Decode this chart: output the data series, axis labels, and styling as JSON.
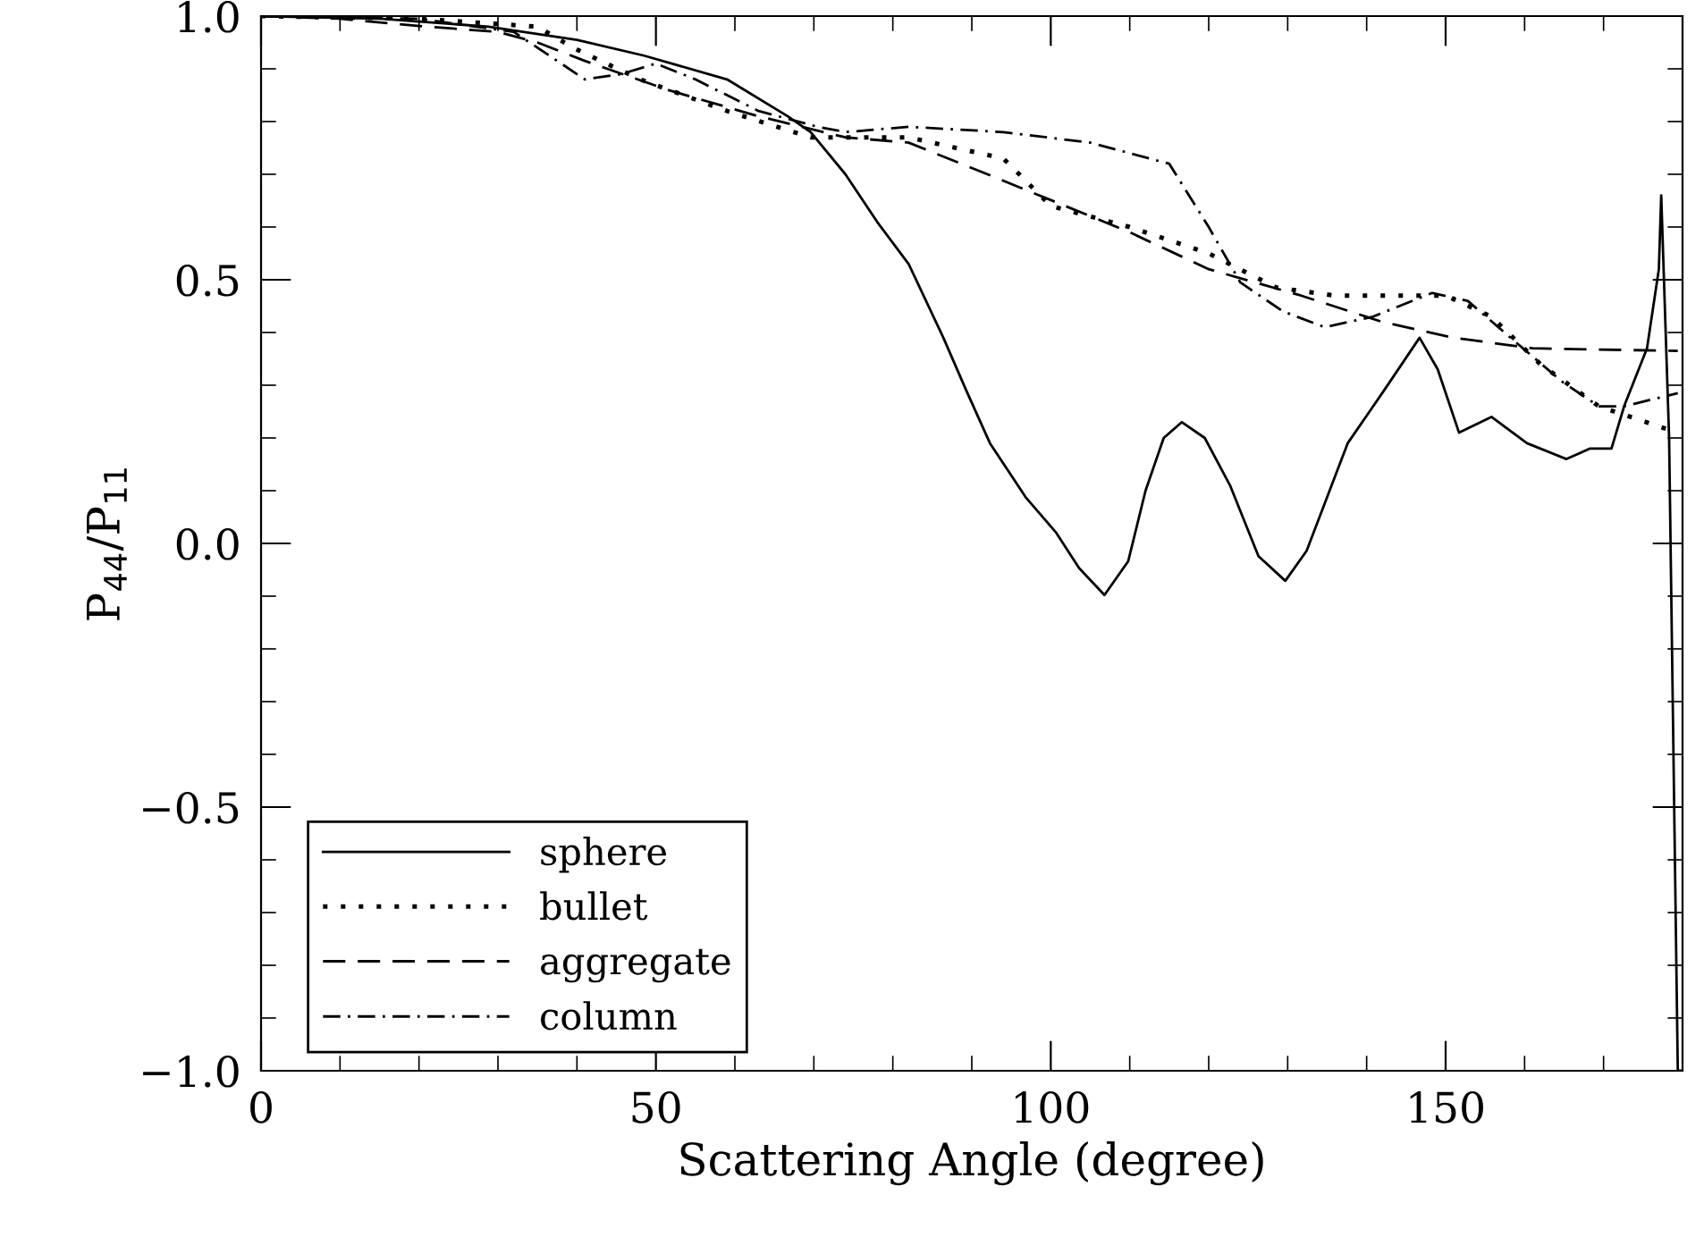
{
  "chart_data": {
    "type": "line",
    "xlabel": "Scattering Angle (degree)",
    "ylabel": "P$_{44}$/P$_{11}$",
    "xlim": [
      0,
      180
    ],
    "ylim": [
      -1.0,
      1.0
    ],
    "xticks": [
      0,
      50,
      100,
      150
    ],
    "yticks": [
      {
        "value": -1.0,
        "label": "−1.0"
      },
      {
        "value": -0.5,
        "label": "−0.5"
      },
      {
        "value": 0.0,
        "label": "0.0"
      },
      {
        "value": 0.5,
        "label": "0.5"
      },
      {
        "value": 1.0,
        "label": "1.0"
      }
    ],
    "grid": false,
    "legend": "bottom left",
    "marker": "none",
    "series": [
      {
        "name": "sphere",
        "color": "#000000",
        "line_style": "solid",
        "x": [
          0,
          15,
          28.8,
          40,
          48.5,
          59,
          66.7,
          69.6,
          74,
          78,
          82,
          86.4,
          89.3,
          92.3,
          96.8,
          100.7,
          103.6,
          106.8,
          109.8,
          112,
          114.3,
          116.6,
          119.5,
          122.7,
          126.3,
          129.7,
          132.4,
          137.6,
          142.2,
          146.7,
          149,
          151.7,
          155.8,
          160.3,
          165.3,
          168.3,
          171,
          172.6,
          175.5,
          177,
          177.3,
          178.3,
          179.4,
          180
        ],
        "values": [
          1.0,
          0.995,
          0.98,
          0.955,
          0.925,
          0.88,
          0.81,
          0.78,
          0.7,
          0.61,
          0.53,
          0.39,
          0.29,
          0.19,
          0.088,
          0.02,
          -0.047,
          -0.098,
          -0.034,
          0.1,
          0.2,
          0.23,
          0.2,
          0.11,
          -0.024,
          -0.071,
          -0.014,
          0.19,
          0.29,
          0.39,
          0.33,
          0.21,
          0.24,
          0.19,
          0.16,
          0.18,
          0.18,
          0.26,
          0.37,
          0.52,
          0.66,
          0.2,
          -1.0,
          -1.0
        ]
      },
      {
        "name": "bullet",
        "color": "#000000",
        "line_style": "dotted",
        "x": [
          0,
          20,
          35,
          39.5,
          48,
          59,
          69.6,
          82,
          94,
          100,
          110,
          120,
          128.6,
          136,
          142,
          150,
          155.8,
          162,
          169.4,
          179.4
        ],
        "values": [
          1.0,
          0.995,
          0.98,
          0.94,
          0.88,
          0.82,
          0.77,
          0.77,
          0.73,
          0.64,
          0.6,
          0.55,
          0.485,
          0.47,
          0.47,
          0.47,
          0.43,
          0.34,
          0.26,
          0.21
        ]
      },
      {
        "name": "aggregate",
        "color": "#000000",
        "line_style": "dashed",
        "x": [
          0,
          10,
          21,
          30,
          35,
          41,
          51.5,
          63,
          74,
          82,
          92,
          110,
          120,
          131.7,
          142,
          151,
          161,
          179.4
        ],
        "values": [
          1.0,
          0.995,
          0.98,
          0.97,
          0.95,
          0.915,
          0.86,
          0.81,
          0.77,
          0.76,
          0.7,
          0.59,
          0.52,
          0.47,
          0.42,
          0.39,
          0.37,
          0.365
        ]
      },
      {
        "name": "column",
        "color": "#000000",
        "line_style": "dashdot",
        "x": [
          0,
          20,
          32,
          36.5,
          41,
          45.6,
          50,
          55,
          63,
          70.5,
          74,
          82,
          94,
          105,
          115,
          120,
          124,
          129.4,
          134.7,
          140.8,
          148.3,
          152.8,
          159,
          164.9,
          169.4,
          172.6,
          179.4
        ],
        "values": [
          1.0,
          0.995,
          0.97,
          0.925,
          0.88,
          0.89,
          0.91,
          0.88,
          0.82,
          0.79,
          0.78,
          0.79,
          0.78,
          0.76,
          0.72,
          0.6,
          0.495,
          0.44,
          0.41,
          0.43,
          0.475,
          0.46,
          0.38,
          0.305,
          0.26,
          0.26,
          0.285
        ]
      }
    ]
  }
}
